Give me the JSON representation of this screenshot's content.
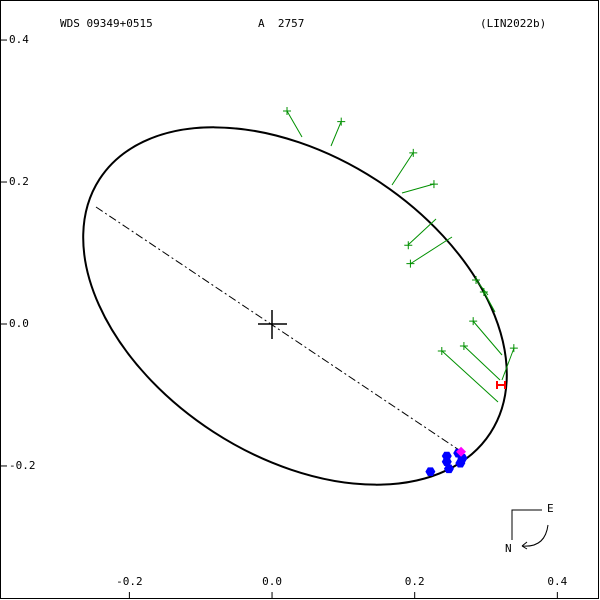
{
  "chart_data": {
    "type": "scatter",
    "header": {
      "left": "WDS 09349+0515",
      "center": "A  2757",
      "right": "(LIN2022b)"
    },
    "compass": {
      "east": "E",
      "north": "N"
    },
    "xlim": [
      -0.38,
      0.457
    ],
    "ylim": [
      -0.386,
      0.455
    ],
    "xticks": [
      -0.2,
      {
        "value": 0,
        "label": "0.0"
      },
      0.2,
      0.4
    ],
    "yticks": [
      -0.2,
      {
        "value": 0,
        "label": "0.0"
      },
      0.2,
      0.4
    ],
    "series": [
      {
        "color": "#009000",
        "marker": "plus",
        "x": [
          0.021,
          0.097,
          0.198,
          0.227,
          0.191,
          0.194,
          0.286,
          0.297,
          0.282,
          0.269,
          0.238,
          0.339
        ],
        "y": [
          0.3,
          0.285,
          0.241,
          0.197,
          0.111,
          0.085,
          0.062,
          0.045,
          0.004,
          -0.031,
          -0.038,
          -0.034
        ]
      },
      {
        "color": "#0000ff",
        "marker": "hexagon",
        "x": [
          0.222,
          0.245,
          0.248,
          0.245,
          0.264,
          0.267,
          0.261
        ],
        "y": [
          -0.208,
          -0.186,
          -0.204,
          -0.194,
          -0.196,
          -0.189,
          -0.182
        ]
      },
      {
        "color": "#ff00ff",
        "marker": "diamond",
        "x": [
          0.265
        ],
        "y": [
          -0.18
        ]
      },
      {
        "color": "#ff0000",
        "marker": "h",
        "x": [
          0.321
        ],
        "y": [
          -0.086
        ]
      }
    ]
  }
}
